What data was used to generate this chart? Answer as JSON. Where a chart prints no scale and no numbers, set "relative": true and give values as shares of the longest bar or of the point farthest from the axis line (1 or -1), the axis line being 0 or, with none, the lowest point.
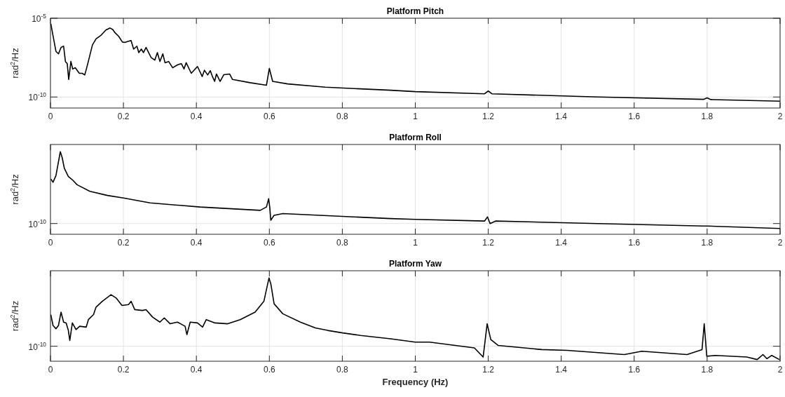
{
  "chart_data": [
    {
      "type": "line",
      "title": "Platform Pitch",
      "ylabel": "rad$^{2}$/Hz",
      "log": "y",
      "grid": true,
      "xlim": [
        0,
        2
      ],
      "xticks": [
        0,
        0.2,
        0.4,
        0.6,
        0.8,
        1,
        1.2,
        1.4,
        1.6,
        1.8,
        2
      ],
      "ylim": [
        2e-11,
        1e-05
      ],
      "yticks": [
        {
          "value": 1e-05,
          "label": "10$^{-5}$"
        },
        {
          "value": 1e-10,
          "label": "10$^{-10}$"
        }
      ],
      "series": [
        {
          "color": "#000000",
          "x": [
            0.001,
            0.008,
            0.015,
            0.022,
            0.029,
            0.036,
            0.041,
            0.046,
            0.05,
            0.056,
            0.061,
            0.068,
            0.079,
            0.087,
            0.094,
            0.101,
            0.115,
            0.125,
            0.139,
            0.152,
            0.163,
            0.171,
            0.177,
            0.187,
            0.197,
            0.204,
            0.214,
            0.221,
            0.228,
            0.237,
            0.242,
            0.249,
            0.255,
            0.262,
            0.276,
            0.286,
            0.293,
            0.3,
            0.308,
            0.314,
            0.324,
            0.335,
            0.348,
            0.359,
            0.366,
            0.372,
            0.386,
            0.403,
            0.416,
            0.422,
            0.431,
            0.438,
            0.444,
            0.45,
            0.455,
            0.465,
            0.475,
            0.491,
            0.499,
            0.547,
            0.592,
            0.6,
            0.609,
            0.65,
            0.753,
            0.932,
            1.0,
            1.19,
            1.2,
            1.21,
            1.5,
            1.79,
            1.8,
            1.81,
            2.0
          ],
          "values": [
            4.5e-06,
            5.9e-07,
            7.9e-08,
            5.5e-08,
            1.4e-07,
            1.7e-07,
            1.8e-08,
            1.3e-08,
            1.3e-09,
            1.8e-08,
            6e-09,
            7.2e-09,
            3.2e-09,
            3.2e-09,
            2.5e-09,
            1e-08,
            2e-07,
            4.9e-07,
            8.5e-07,
            1.8e-06,
            2.4e-06,
            1.9e-06,
            1.2e-06,
            7.1e-07,
            3.1e-07,
            2.9e-07,
            3.5e-07,
            3.8e-07,
            1.1e-07,
            1.7e-07,
            6.6e-08,
            1.1e-07,
            6.6e-08,
            1.4e-07,
            3.2e-08,
            2.2e-08,
            6.6e-08,
            1.8e-08,
            5.5e-08,
            1.5e-08,
            1.8e-08,
            7.2e-09,
            1.1e-08,
            1.3e-08,
            6e-09,
            1.5e-08,
            3.2e-09,
            8.7e-09,
            2e-09,
            5e-09,
            2.5e-09,
            4.7e-09,
            2e-09,
            9.8e-10,
            2.9e-09,
            9.8e-10,
            2.6e-09,
            2.9e-09,
            1.3e-09,
            8.1e-10,
            5.6e-10,
            6.6e-09,
            9.8e-10,
            6.8e-10,
            4.2e-10,
            2.7e-10,
            2.2e-10,
            1.6e-10,
            2.4e-10,
            1.6e-10,
            1e-10,
            7.1e-11,
            8.9e-11,
            6.9e-11,
            5.4e-11
          ]
        }
      ]
    },
    {
      "type": "line",
      "title": "Platform Roll",
      "ylabel": "rad$^{2}$/Hz",
      "relative": true,
      "grid": true,
      "xlim": [
        0,
        2
      ],
      "xticks": [
        0,
        0.2,
        0.4,
        0.6,
        0.8,
        1,
        1.2,
        1.4,
        1.6,
        1.8,
        2
      ],
      "annotations": [
        "10$^{-10}$"
      ],
      "series": [
        {
          "color": "#000000",
          "x": [
            0.001,
            0.007,
            0.015,
            0.027,
            0.032,
            0.038,
            0.049,
            0.06,
            0.073,
            0.108,
            0.156,
            0.2,
            0.273,
            0.41,
            0.575,
            0.592,
            0.598,
            0.601,
            0.604,
            0.613,
            0.637,
            0.932,
            1.0,
            1.19,
            1.198,
            1.205,
            1.22,
            1.5,
            1.79,
            1.8,
            2.0
          ],
          "values": [
            0.67,
            0.63,
            0.71,
            1,
            0.93,
            0.8,
            0.7,
            0.66,
            0.6,
            0.52,
            0.47,
            0.44,
            0.38,
            0.33,
            0.29,
            0.33,
            0.43,
            0.33,
            0.17,
            0.23,
            0.25,
            0.19,
            0.18,
            0.16,
            0.21,
            0.13,
            0.16,
            0.13,
            0.1,
            0.1,
            0.07
          ]
        }
      ]
    },
    {
      "type": "line",
      "title": "Platform Yaw",
      "xlabel": "Frequency (Hz)",
      "ylabel": "rad$^{2}$/Hz",
      "relative": true,
      "grid": true,
      "xlim": [
        0,
        2
      ],
      "xticks": [
        0,
        0.2,
        0.4,
        0.6,
        0.8,
        1,
        1.2,
        1.4,
        1.6,
        1.8,
        2
      ],
      "annotations": [
        "10$^{-10}$"
      ],
      "series": [
        {
          "color": "#000000",
          "x": [
            0.001,
            0.007,
            0.015,
            0.022,
            0.029,
            0.036,
            0.043,
            0.049,
            0.053,
            0.06,
            0.07,
            0.08,
            0.098,
            0.104,
            0.118,
            0.125,
            0.142,
            0.166,
            0.18,
            0.196,
            0.214,
            0.221,
            0.231,
            0.252,
            0.262,
            0.28,
            0.3,
            0.312,
            0.328,
            0.348,
            0.369,
            0.374,
            0.383,
            0.403,
            0.417,
            0.427,
            0.451,
            0.486,
            0.52,
            0.561,
            0.585,
            0.594,
            0.599,
            0.604,
            0.613,
            0.637,
            0.685,
            0.726,
            0.76,
            0.801,
            0.85,
            0.932,
            1.0,
            1.039,
            1.162,
            1.186,
            1.197,
            1.207,
            1.227,
            1.299,
            1.347,
            1.416,
            1.573,
            1.621,
            1.745,
            1.786,
            1.792,
            1.799,
            1.823,
            1.909,
            1.937,
            1.953,
            1.964,
            1.977,
            1.998
          ],
          "values": [
            0.56,
            0.43,
            0.39,
            0.43,
            0.59,
            0.47,
            0.46,
            0.37,
            0.25,
            0.46,
            0.38,
            0.42,
            0.41,
            0.5,
            0.56,
            0.65,
            0.72,
            0.8,
            0.76,
            0.67,
            0.68,
            0.72,
            0.62,
            0.61,
            0.62,
            0.53,
            0.47,
            0.52,
            0.45,
            0.47,
            0.42,
            0.32,
            0.47,
            0.46,
            0.41,
            0.5,
            0.46,
            0.45,
            0.5,
            0.59,
            0.72,
            0.9,
            1,
            0.93,
            0.69,
            0.57,
            0.47,
            0.4,
            0.37,
            0.34,
            0.31,
            0.27,
            0.23,
            0.23,
            0.16,
            0.05,
            0.45,
            0.26,
            0.19,
            0.16,
            0.14,
            0.13,
            0.08,
            0.12,
            0.08,
            0.14,
            0.45,
            0.06,
            0.07,
            0.05,
            0.02,
            0.08,
            0.03,
            0.07,
            0.02
          ]
        }
      ]
    }
  ]
}
